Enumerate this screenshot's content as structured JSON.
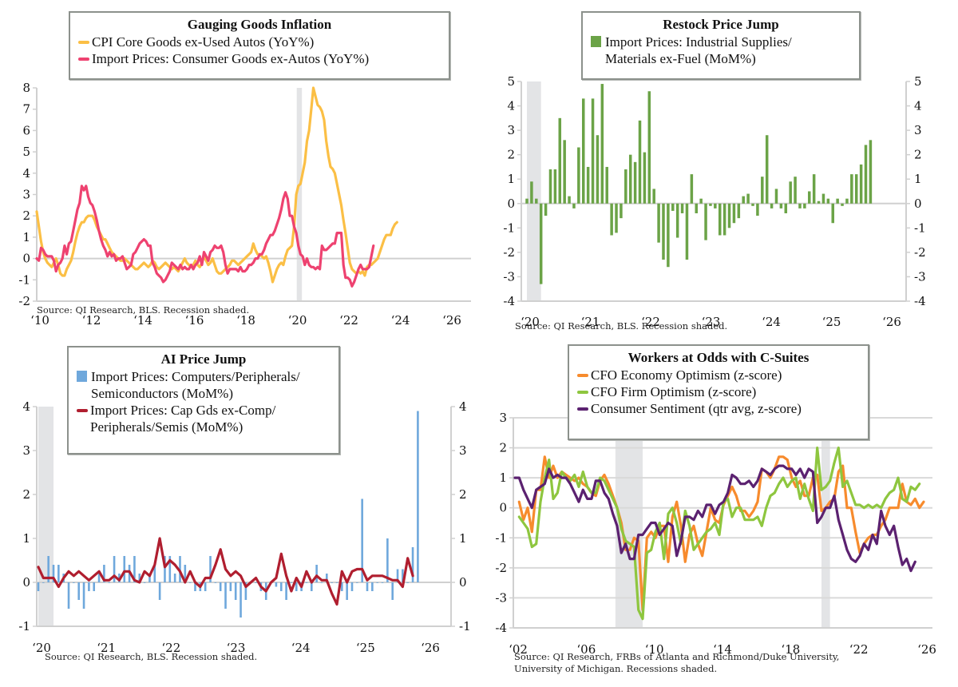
{
  "chart_data": [
    {
      "id": "goods",
      "type": "line",
      "title": "Gauging Goods Inflation",
      "source": "Source: QI Research, BLS. Recession shaded.",
      "xlabel": "",
      "ylabel": "",
      "x_tick_labels": [
        "‘10",
        "‘12",
        "‘14",
        "‘16",
        "‘18",
        "‘20",
        "‘22",
        "‘24",
        "‘26"
      ],
      "x_range": [
        2010,
        2026
      ],
      "ylim": [
        -2,
        8
      ],
      "y_ticks": [
        -2,
        -1,
        0,
        1,
        2,
        3,
        4,
        5,
        6,
        7,
        8
      ],
      "recessions": [
        [
          2020.1,
          2020.3
        ]
      ],
      "legend_placement": "top-center",
      "series": [
        {
          "name": "CPI Core Goods ex-Used Autos (YoY%)",
          "color": "#fbbf45",
          "x_start": 2010.0,
          "x_step": 0.0833,
          "values": [
            2.2,
            1.5,
            0.8,
            0.3,
            0.0,
            -0.2,
            -0.3,
            -0.4,
            -0.2,
            0.0,
            -0.3,
            -0.7,
            -0.8,
            -0.8,
            -0.5,
            -0.3,
            -0.1,
            0.3,
            0.8,
            1.2,
            1.5,
            1.7,
            1.7,
            1.9,
            2.0,
            2.0,
            2.0,
            1.8,
            1.5,
            1.3,
            1.1,
            0.9,
            0.9,
            0.7,
            0.5,
            0.3,
            0.2,
            0.1,
            0.0,
            -0.1,
            -0.1,
            0.0,
            -0.1,
            -0.2,
            -0.3,
            -0.4,
            -0.5,
            -0.5,
            -0.4,
            -0.3,
            -0.2,
            -0.3,
            -0.4,
            -0.3,
            -0.1,
            -0.2,
            -0.4,
            -0.5,
            -0.4,
            -0.3,
            -0.2,
            -0.3,
            -0.4,
            -0.5,
            -0.4,
            -0.5,
            -0.6,
            -0.4,
            -0.2,
            0.0,
            -0.2,
            -0.3,
            -0.4,
            -0.3,
            -0.1,
            -0.3,
            -0.4,
            -0.2,
            0.1,
            -0.1,
            -0.3,
            -0.2,
            0.0,
            -0.3,
            -0.6,
            -0.7,
            -0.7,
            -0.6,
            -0.5,
            -0.4,
            -0.3,
            -0.1,
            -0.1,
            -0.2,
            -0.3,
            -0.2,
            -0.1,
            0.0,
            0.1,
            0.2,
            0.3,
            0.7,
            0.4,
            0.2,
            0.2,
            0.1,
            0.0,
            0.1,
            -0.2,
            -0.6,
            -1.1,
            -0.8,
            -0.5,
            -0.3,
            -0.2,
            -0.3,
            0.1,
            0.4,
            0.5,
            0.6,
            1.5,
            3.0,
            3.4,
            3.5,
            4.0,
            4.5,
            5.5,
            6.0,
            7.0,
            8.0,
            7.6,
            7.2,
            7.1,
            6.9,
            6.5,
            5.5,
            4.8,
            4.3,
            4.2,
            4.0,
            3.5,
            3.0,
            2.5,
            1.8,
            1.2,
            0.5,
            -0.2,
            -0.5,
            -0.6,
            -0.7,
            -0.6,
            -0.7,
            -0.6,
            -0.8,
            -0.4,
            -0.3,
            -0.3,
            -0.2,
            -0.1,
            0.0,
            0.3,
            0.6,
            0.9,
            1.1,
            1.1,
            1.1,
            1.4,
            1.6,
            1.7
          ]
        },
        {
          "name": "Import Prices: Consumer Goods ex-Autos (YoY%)",
          "color": "#ee4270",
          "x_start": 2010.0,
          "x_step": 0.0833,
          "values": [
            0.0,
            -0.1,
            0.5,
            0.4,
            0.2,
            0.1,
            0.1,
            0.1,
            -0.1,
            -0.6,
            -0.3,
            -0.2,
            0.0,
            0.6,
            0.2,
            0.7,
            0.8,
            1.3,
            1.8,
            2.3,
            2.6,
            3.4,
            3.2,
            3.4,
            2.9,
            2.6,
            2.5,
            2.2,
            1.8,
            1.3,
            0.9,
            0.6,
            0.4,
            0.1,
            0.3,
            0.1,
            0.2,
            -0.1,
            0.0,
            0.0,
            0.1,
            -0.2,
            -0.5,
            -0.4,
            -0.3,
            0.2,
            0.3,
            0.5,
            0.7,
            0.8,
            0.9,
            0.8,
            0.6,
            0.6,
            -0.2,
            -0.4,
            -0.7,
            -0.8,
            -0.9,
            -1.1,
            -1.0,
            -0.8,
            -0.6,
            -0.2,
            -0.3,
            -0.4,
            -0.5,
            -0.3,
            -0.5,
            -0.4,
            -0.5,
            -0.5,
            -0.3,
            -0.5,
            -0.3,
            -0.2,
            0.1,
            -0.3,
            0.3,
            0.1,
            -0.1,
            0.3,
            0.4,
            0.6,
            0.5,
            0.5,
            0.6,
            0.3,
            -0.3,
            -0.7,
            -0.5,
            -0.5,
            -0.5,
            -0.5,
            -0.6,
            -0.4,
            -0.6,
            -0.6,
            -0.5,
            -0.3,
            -0.3,
            -0.2,
            0.0,
            0.0,
            0.2,
            0.2,
            0.4,
            0.7,
            0.9,
            1.1,
            1.1,
            1.3,
            1.6,
            1.9,
            2.3,
            2.8,
            3.1,
            2.8,
            2.0,
            2.0,
            1.5,
            1.2,
            0.6,
            0.2,
            0.1,
            -0.3,
            0.0,
            -0.3,
            -0.4,
            -0.4,
            -0.5,
            -0.4,
            -0.5,
            0.6,
            0.4,
            0.4,
            0.5,
            0.6,
            0.7,
            0.7,
            1.2,
            1.2,
            1.2,
            -0.3,
            -0.9,
            -0.9,
            -1.0,
            -1.3,
            -1.1,
            -0.8,
            -0.5,
            -0.3,
            -0.5,
            -0.5,
            -0.5,
            -0.4,
            0.1,
            0.6
          ]
        }
      ]
    },
    {
      "id": "restock",
      "type": "bar",
      "title": "Restock Price Jump",
      "source": "Source: QI Research, BLS. Recession shaded.",
      "xlabel": "",
      "ylabel": "",
      "x_tick_labels": [
        "‘20",
        "‘21",
        "‘22",
        "‘23",
        "‘24",
        "‘25",
        "‘26"
      ],
      "x_range": [
        2020,
        2026.4
      ],
      "ylim": [
        -4,
        5
      ],
      "y_ticks": [
        -4,
        -3,
        -2,
        -1,
        0,
        1,
        2,
        3,
        4,
        5
      ],
      "dual_axis": true,
      "recessions": [
        [
          2020.0,
          2020.25
        ]
      ],
      "legend_placement": "top-center",
      "series": [
        {
          "name": "Import Prices: Industrial Supplies/\nMaterials ex-Fuel (MoM%)",
          "color": "#6ba347",
          "x_start": 2020.0,
          "x_step": 0.0833,
          "values": [
            0.2,
            0.9,
            0.2,
            -3.3,
            -0.5,
            1.4,
            1.4,
            3.5,
            2.6,
            0.3,
            -0.2,
            2.3,
            4.3,
            1.5,
            4.3,
            2.8,
            4.9,
            1.5,
            -1.3,
            -1.2,
            -0.6,
            1.4,
            2.0,
            1.7,
            3.4,
            2.1,
            4.6,
            0.6,
            -1.6,
            -2.3,
            -2.6,
            -0.3,
            -1.4,
            -0.4,
            -2.3,
            1.2,
            -0.4,
            0.2,
            -1.5,
            -0.1,
            -0.2,
            -1.3,
            -1.3,
            -1.0,
            -0.8,
            -0.6,
            0.3,
            0.4,
            -0.1,
            -0.5,
            1.1,
            2.8,
            -0.2,
            0.6,
            -0.2,
            -0.4,
            0.9,
            1.1,
            -0.2,
            -0.2,
            0.5,
            1.2,
            0.1,
            0.4,
            0.2,
            -0.8,
            0.2,
            -0.1,
            0.2,
            1.2,
            1.2,
            1.6,
            2.4,
            2.6
          ]
        }
      ]
    },
    {
      "id": "ai",
      "type": "bar+line",
      "title": "AI Price Jump",
      "source": "Source: QI Research, BLS. Recession shaded.",
      "xlabel": "",
      "ylabel": "",
      "x_tick_labels": [
        "‘20",
        "‘21",
        "‘22",
        "‘23",
        "‘24",
        "‘25",
        "‘26"
      ],
      "x_range": [
        2020,
        2026.4
      ],
      "ylim": [
        -1,
        4
      ],
      "y_ticks": [
        -1,
        0,
        1,
        2,
        3,
        4
      ],
      "dual_axis": true,
      "recessions": [
        [
          2020.0,
          2020.25
        ]
      ],
      "legend_placement": "top-center",
      "series": [
        {
          "name": "Import Prices: Computers/Peripherals/\nSemiconductors (MoM%)",
          "kind": "bar",
          "color": "#6fa8dc",
          "x_start": 2020.0,
          "x_step": 0.0833,
          "values": [
            -0.2,
            0.0,
            0.6,
            0.4,
            0.4,
            0.2,
            -0.6,
            0.0,
            -0.4,
            -0.6,
            -0.2,
            -0.2,
            0.2,
            0.4,
            0.0,
            0.6,
            0.2,
            0.6,
            0.4,
            0.6,
            0.2,
            0.0,
            0.2,
            0.4,
            -0.4,
            0.6,
            0.6,
            0.2,
            0.6,
            0.4,
            0.0,
            -0.2,
            -0.2,
            -0.2,
            0.6,
            0.0,
            -0.2,
            -0.6,
            -0.2,
            -0.4,
            -0.8,
            -0.4,
            0.0,
            0.0,
            -0.2,
            -0.4,
            0.0,
            -0.1,
            -0.2,
            -0.4,
            0.0,
            -0.2,
            -0.2,
            0.0,
            -0.2,
            0.4,
            0.0,
            0.2,
            0.0,
            0.0,
            -0.2,
            -0.4,
            -0.2,
            0.0,
            1.9,
            -0.2,
            -0.2,
            0.0,
            0.0,
            1.0,
            -0.4,
            0.3,
            0.3,
            0.0,
            0.8,
            3.9
          ]
        },
        {
          "name": "Import Prices: Cap Gds ex-Comp/\nPeripherals/Semis (MoM%)",
          "kind": "line",
          "color": "#b01e2f",
          "x_start": 2020.0,
          "x_step": 0.0833,
          "values": [
            0.35,
            0.1,
            0.1,
            0.1,
            -0.1,
            0.1,
            0.25,
            0.15,
            0.25,
            0.15,
            0.05,
            0.15,
            0.25,
            0.05,
            0.05,
            0.15,
            0.05,
            0.25,
            0.25,
            0.05,
            0.0,
            0.25,
            0.15,
            0.4,
            1.0,
            0.35,
            0.5,
            0.4,
            0.25,
            0.0,
            0.25,
            0.0,
            -0.1,
            0.1,
            0.1,
            0.4,
            0.75,
            0.3,
            0.15,
            0.25,
            0.15,
            -0.1,
            0.0,
            0.1,
            -0.1,
            -0.2,
            0.0,
            0.1,
            0.65,
            0.15,
            -0.2,
            0.1,
            -0.1,
            0.25,
            0.0,
            0.15,
            0.05,
            0.05,
            -0.25,
            -0.5,
            0.25,
            0.0,
            0.25,
            0.3,
            0.3,
            0.05,
            0.15,
            0.15,
            0.15,
            0.1,
            0.05,
            0.05,
            -0.1,
            0.55,
            0.15
          ]
        }
      ]
    },
    {
      "id": "workers",
      "type": "line",
      "title": "Workers at Odds with C-Suites",
      "source": "Source: QI Research, FRBs of Atlanta and Richmond/Duke University,\nUniversity of Michigan. Recessions shaded.",
      "xlabel": "",
      "ylabel": "",
      "x_tick_labels": [
        "‘02",
        "‘06",
        "‘10",
        "‘14",
        "‘18",
        "‘22",
        "‘26"
      ],
      "x_range": [
        2002,
        2026
      ],
      "ylim": [
        -4,
        3
      ],
      "y_ticks": [
        -4,
        -3,
        -2,
        -1,
        0,
        1,
        2,
        3
      ],
      "grid": true,
      "recessions": [
        [
          2007.9,
          2009.5
        ],
        [
          2020.0,
          2020.5
        ]
      ],
      "legend_placement": "top-center",
      "series": [
        {
          "name": "CFO Economy Optimism (z-score)",
          "color": "#f78b2d",
          "x_start": 2002.25,
          "x_step": 0.25,
          "values": [
            0.2,
            -0.4,
            0.0,
            -0.8,
            0.6,
            0.6,
            1.7,
            1.0,
            1.4,
            1.0,
            1.2,
            1.1,
            1.0,
            0.9,
            1.0,
            0.8,
            0.7,
            0.5,
            0.4,
            0.9,
            1.1,
            0.8,
            0.4,
            0.0,
            -0.5,
            -1.4,
            -1.4,
            -1.0,
            -1.1,
            -3.4,
            -1.0,
            -0.8,
            -1.0,
            -0.6,
            -0.6,
            -1.8,
            -0.3,
            0.2,
            -0.6,
            -1.8,
            -0.9,
            -0.6,
            -1.2,
            -1.6,
            -0.8,
            0.0,
            -0.4,
            -0.5,
            0.1,
            0.4,
            0.7,
            0.4,
            -0.1,
            -0.1,
            -0.3,
            -0.1,
            0.2,
            1.3,
            1.2,
            1.0,
            1.3,
            1.7,
            1.7,
            1.6,
            1.0,
            0.7,
            0.9,
            0.4,
            0.4,
            1.0,
            1.1,
            -0.1,
            0.0,
            0.2,
            0.3,
            1.2,
            1.4,
            0.0,
            0.0,
            -0.8,
            -1.5,
            -1.2,
            -1.0,
            -0.9,
            -0.9,
            -0.6,
            -0.4,
            0.0,
            0.0,
            0.0,
            0.8,
            0.2,
            0.1,
            0.3,
            0.0,
            0.2
          ]
        },
        {
          "name": "CFO Firm Optimism (z-score)",
          "color": "#8ec63f",
          "x_start": 2002.25,
          "x_step": 0.25,
          "values": [
            -0.3,
            -0.5,
            -0.7,
            -1.3,
            -1.2,
            0.2,
            1.0,
            1.6,
            0.3,
            0.5,
            1.2,
            1.0,
            0.9,
            1.1,
            0.7,
            1.2,
            0.7,
            0.5,
            0.5,
            1.0,
            0.9,
            0.6,
            0.3,
            0.0,
            -0.7,
            -1.1,
            -1.2,
            -1.3,
            -3.4,
            -3.7,
            -1.5,
            -1.4,
            -0.8,
            -0.5,
            -1.7,
            -0.2,
            0.0,
            -0.5,
            -1.2,
            -0.1,
            -0.6,
            -1.4,
            -1.2,
            -1.0,
            -0.8,
            -0.7,
            -0.5,
            -0.9,
            0.2,
            0.3,
            -0.3,
            0.0,
            0.0,
            -0.4,
            -0.4,
            -0.4,
            -0.3,
            -0.6,
            0.0,
            0.4,
            0.5,
            0.8,
            1.0,
            0.7,
            0.9,
            1.0,
            0.3,
            0.8,
            0.3,
            -0.1,
            2.0,
            0.6,
            0.7,
            0.9,
            1.5,
            2.0,
            0.7,
            0.9,
            0.5,
            0.1,
            0.1,
            0.0,
            0.1,
            0.0,
            0.1,
            0.0,
            0.3,
            0.5,
            0.6,
            1.0,
            0.3,
            0.2,
            0.7,
            0.6,
            0.8
          ]
        },
        {
          "name": "Consumer Sentiment (qtr avg, z-score)",
          "color": "#5b2170",
          "x_start": 2002.0,
          "x_step": 0.25,
          "values": [
            1.0,
            1.0,
            0.6,
            0.3,
            0.0,
            0.6,
            0.7,
            0.8,
            1.3,
            1.0,
            1.1,
            1.0,
            1.0,
            0.8,
            0.5,
            0.2,
            0.6,
            0.3,
            0.3,
            0.9,
            0.9,
            0.5,
            0.3,
            -0.2,
            -0.6,
            -1.5,
            -1.2,
            -1.7,
            -1.7,
            -0.9,
            -0.9,
            -0.7,
            -0.5,
            -0.5,
            -0.9,
            -0.7,
            -0.5,
            -0.6,
            -1.6,
            -1.1,
            -0.3,
            -0.3,
            -0.4,
            -0.1,
            -0.3,
            0.1,
            0.1,
            -0.2,
            0.1,
            0.2,
            0.5,
            1.1,
            1.0,
            0.8,
            0.8,
            0.9,
            0.7,
            0.9,
            1.3,
            1.2,
            1.1,
            1.3,
            1.4,
            1.4,
            1.3,
            1.3,
            1.1,
            1.3,
            1.0,
            1.3,
            1.2,
            -0.5,
            -0.3,
            0.0,
            0.0,
            0.4,
            -0.4,
            -0.9,
            -1.4,
            -1.7,
            -1.8,
            -1.6,
            -1.2,
            -1.4,
            -0.9,
            -1.2,
            -0.1,
            -0.6,
            -0.9,
            -0.6,
            -1.3,
            -1.9,
            -1.7,
            -2.1,
            -1.8
          ]
        }
      ]
    }
  ]
}
